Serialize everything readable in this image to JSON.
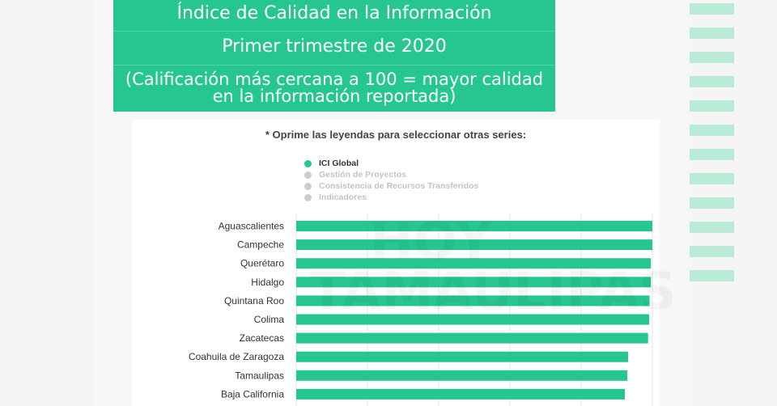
{
  "header": {
    "title": "Índice de Calidad en la Información",
    "period": "Primer trimestre de 2020",
    "note": "(Calificación más cercana a 100 = mayor calidad en la información reportada)"
  },
  "instruction": "* Oprime las leyendas para seleccionar otras series:",
  "legend": [
    {
      "label": "ICI Global",
      "active": true,
      "color": "#26c78e"
    },
    {
      "label": "Gestión de Proyectos",
      "active": false,
      "color": "#cccccc"
    },
    {
      "label": "Consistencia de Recursos Transferidos",
      "active": false,
      "color": "#cccccc"
    },
    {
      "label": "Indicadores",
      "active": false,
      "color": "#cccccc"
    }
  ],
  "watermark": {
    "line1": "HOY",
    "line2": "TAMAULIPAS"
  },
  "colors": {
    "bar": "#26c78e",
    "header": "#26c78e",
    "inactive_legend": "#cccccc"
  },
  "chart_data": {
    "type": "bar",
    "orientation": "horizontal",
    "xlim": [
      0,
      100
    ],
    "categories": [
      "Aguascalientes",
      "Campeche",
      "Querétaro",
      "Hidalgo",
      "Quintana Roo",
      "Colima",
      "Zacatecas",
      "Coahuila de Zaragoza",
      "Tamaulipas",
      "Baja California"
    ],
    "series": [
      {
        "name": "ICI Global",
        "values": [
          100,
          100,
          99.6,
          99.6,
          99.2,
          99.1,
          98.8,
          93.2,
          93.0,
          92.3
        ]
      }
    ],
    "grid": true
  }
}
